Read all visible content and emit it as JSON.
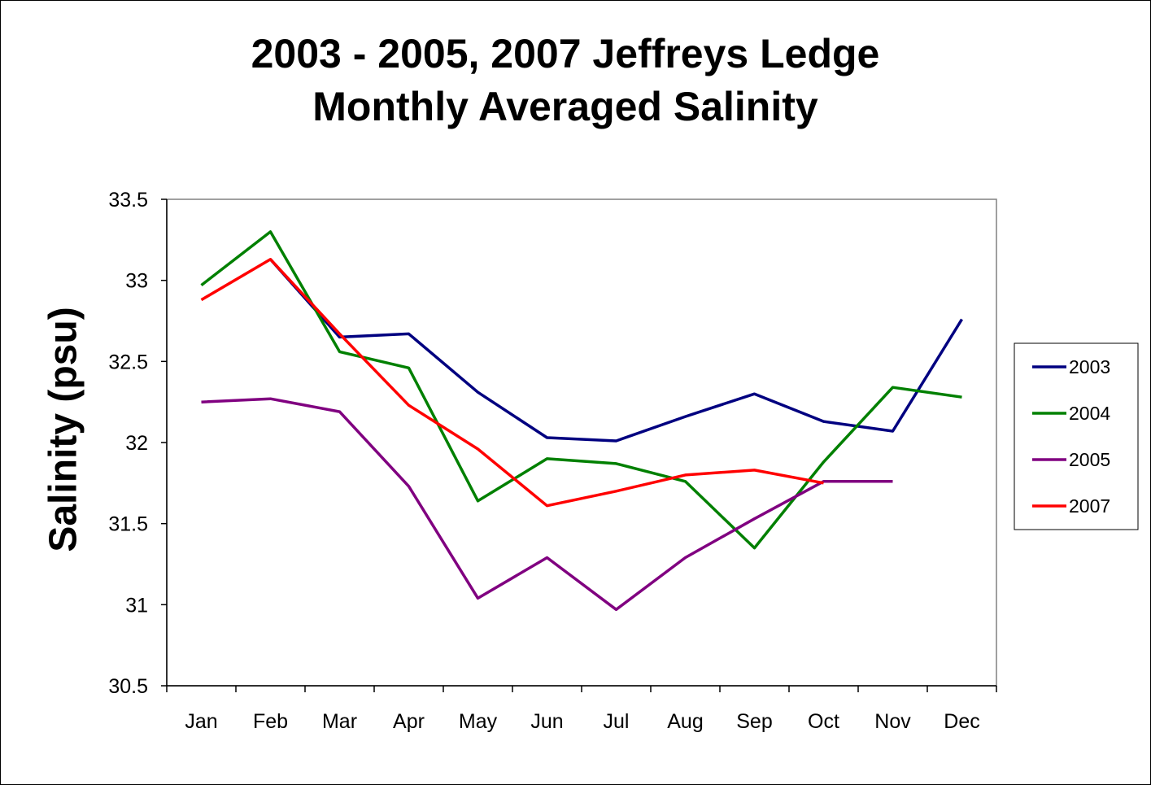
{
  "chart_data": {
    "type": "line",
    "title_line1": "2003 - 2005, 2007 Jeffreys Ledge",
    "title_line2": "Monthly Averaged Salinity",
    "xlabel": "",
    "ylabel": "Salinity (psu)",
    "ylim": [
      30.5,
      33.5
    ],
    "yticks": [
      "33.5",
      "33",
      "32.5",
      "32",
      "31.5",
      "31",
      "30.5"
    ],
    "categories": [
      "Jan",
      "Feb",
      "Mar",
      "Apr",
      "May",
      "Jun",
      "Jul",
      "Aug",
      "Sep",
      "Oct",
      "Nov",
      "Dec"
    ],
    "grid": false,
    "legend_position": "right",
    "series": [
      {
        "name": "2003",
        "color": "#000080",
        "values": [
          null,
          33.13,
          32.65,
          32.67,
          32.31,
          32.03,
          32.01,
          32.16,
          32.3,
          32.13,
          32.07,
          32.76
        ]
      },
      {
        "name": "2004",
        "color": "#008000",
        "values": [
          32.97,
          33.3,
          32.56,
          32.46,
          31.64,
          31.9,
          31.87,
          31.76,
          31.35,
          31.88,
          32.34,
          32.28
        ]
      },
      {
        "name": "2005",
        "color": "#800080",
        "values": [
          32.25,
          32.27,
          32.19,
          31.73,
          31.04,
          31.29,
          30.97,
          31.29,
          31.53,
          31.76,
          31.76,
          null
        ]
      },
      {
        "name": "2007",
        "color": "#ff0000",
        "values": [
          32.88,
          33.13,
          32.67,
          32.23,
          31.96,
          31.61,
          31.7,
          31.8,
          31.83,
          31.75,
          null,
          null
        ]
      }
    ]
  }
}
